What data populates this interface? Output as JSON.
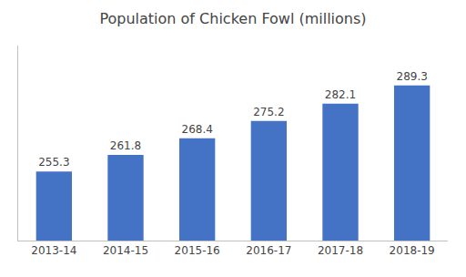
{
  "chart_data": {
    "type": "bar",
    "title": "Population of Chicken Fowl (millions)",
    "categories": [
      "2013-14",
      "2014-15",
      "2015-16",
      "2016-17",
      "2017-18",
      "2018-19"
    ],
    "values": [
      255.3,
      261.8,
      268.4,
      275.2,
      282.1,
      289.3
    ],
    "color": "#4472C4",
    "ylim": [
      228,
      305
    ],
    "grid": false,
    "data_labels": true,
    "tick_labels": "x"
  }
}
